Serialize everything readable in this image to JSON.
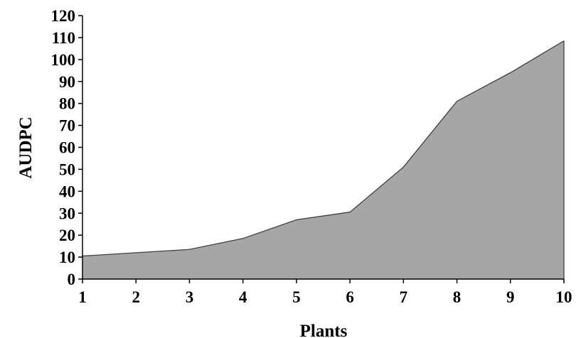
{
  "chart_data": {
    "type": "area",
    "title": "",
    "xlabel": "Plants",
    "ylabel": "AUDPC",
    "categories": [
      "1",
      "2",
      "3",
      "4",
      "5",
      "6",
      "7",
      "8",
      "9",
      "10"
    ],
    "x": [
      1,
      2,
      3,
      4,
      5,
      6,
      7,
      8,
      9,
      10
    ],
    "series": [
      {
        "values": [
          10.5,
          12,
          13.5,
          18.5,
          27,
          30.5,
          51,
          81,
          94,
          108.5
        ]
      }
    ],
    "ylim": [
      0,
      120
    ],
    "yticks": [
      0,
      10,
      20,
      30,
      40,
      50,
      60,
      70,
      80,
      90,
      100,
      110,
      120
    ],
    "grid": false,
    "legend": "none",
    "colors": {
      "fill": "#a6a6a6",
      "stroke": "#404040",
      "axis": "#000000"
    }
  }
}
